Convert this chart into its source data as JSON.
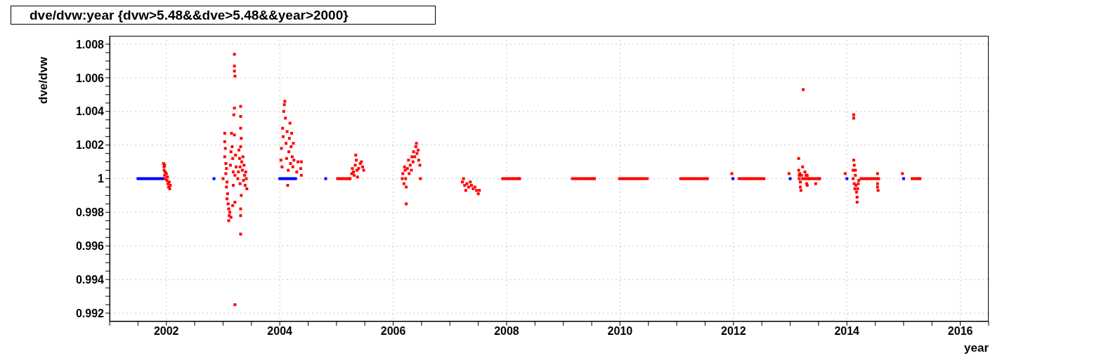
{
  "chart_data": {
    "type": "scatter",
    "title": "dve/dvw:year {dvw>5.48&&dve>5.48&&year>2000}",
    "xlabel": "year",
    "ylabel": "dve/dvw",
    "marker": "square",
    "grid": true,
    "xlim": [
      2001,
      2016.5
    ],
    "xticks": [
      {
        "value": 2001,
        "label": null
      },
      {
        "value": 2001.5,
        "label": null
      },
      2002,
      {
        "value": 2002.5,
        "label": null
      },
      {
        "value": 2003,
        "label": null
      },
      {
        "value": 2003.5,
        "label": null
      },
      2004,
      {
        "value": 2004.5,
        "label": null
      },
      {
        "value": 2005,
        "label": null
      },
      {
        "value": 2005.5,
        "label": null
      },
      2006,
      {
        "value": 2006.5,
        "label": null
      },
      {
        "value": 2007,
        "label": null
      },
      {
        "value": 2007.5,
        "label": null
      },
      2008,
      {
        "value": 2008.5,
        "label": null
      },
      {
        "value": 2009,
        "label": null
      },
      {
        "value": 2009.5,
        "label": null
      },
      2010,
      {
        "value": 2010.5,
        "label": null
      },
      {
        "value": 2011,
        "label": null
      },
      {
        "value": 2011.5,
        "label": null
      },
      2012,
      {
        "value": 2012.5,
        "label": null
      },
      {
        "value": 2013,
        "label": null
      },
      {
        "value": 2013.5,
        "label": null
      },
      2014,
      {
        "value": 2014.5,
        "label": null
      },
      {
        "value": 2015,
        "label": null
      },
      {
        "value": 2015.5,
        "label": null
      },
      2016,
      {
        "value": 2016.5,
        "label": null
      }
    ],
    "ylim": [
      0.9915,
      1.0085
    ],
    "yticks": [
      0.992,
      {
        "value": 0.9925,
        "label": null
      },
      {
        "value": 0.993,
        "label": null
      },
      {
        "value": 0.9935,
        "label": null
      },
      0.994,
      {
        "value": 0.9945,
        "label": null
      },
      {
        "value": 0.995,
        "label": null
      },
      {
        "value": 0.9955,
        "label": null
      },
      0.996,
      {
        "value": 0.9965,
        "label": null
      },
      {
        "value": 0.997,
        "label": null
      },
      {
        "value": 0.9975,
        "label": null
      },
      0.998,
      {
        "value": 0.9985,
        "label": null
      },
      {
        "value": 0.999,
        "label": null
      },
      {
        "value": 0.9995,
        "label": null
      },
      1,
      {
        "value": 1.0005,
        "label": null
      },
      {
        "value": 1.001,
        "label": null
      },
      {
        "value": 1.0015,
        "label": null
      },
      1.002,
      {
        "value": 1.0025,
        "label": null
      },
      {
        "value": 1.003,
        "label": null
      },
      {
        "value": 1.0035,
        "label": null
      },
      1.004,
      {
        "value": 1.0045,
        "label": null
      },
      {
        "value": 1.005,
        "label": null
      },
      {
        "value": 1.0055,
        "label": null
      },
      1.006,
      {
        "value": 1.0065,
        "label": null
      },
      {
        "value": 1.007,
        "label": null
      },
      {
        "value": 1.0075,
        "label": null
      },
      1.008
    ],
    "series": [
      {
        "color": "#0000ff",
        "x": [
          2001.5,
          2001.54,
          2001.58,
          2001.62,
          2001.66,
          2001.7,
          2001.74,
          2001.78,
          2001.82,
          2001.86,
          2001.9,
          2001.94,
          2002.84,
          2004.0,
          2004.04,
          2004.08,
          2004.12,
          2004.16,
          2004.2,
          2004.24,
          2004.28,
          2004.81,
          2011.99,
          2013.0,
          2014.0,
          2015.0
        ],
        "values": [
          1,
          1,
          1,
          1,
          1,
          1,
          1,
          1,
          1,
          1,
          1,
          1,
          1,
          1,
          1,
          1,
          1,
          1,
          1,
          1,
          1,
          1,
          1,
          1,
          1,
          1
        ]
      },
      {
        "color": "#ff0000",
        "x": [
          2001.95,
          2001.96,
          2001.97,
          2001.96,
          2001.98,
          2001.97,
          2001.98,
          2002.0,
          2002.01,
          2002.02,
          2002.03,
          2002.04,
          2002.05,
          2002.06,
          2002.07,
          2003.0,
          2003.03,
          2003.03,
          2003.04,
          2003.03,
          2003.05,
          2003.06,
          2003.05,
          2003.07,
          2003.06,
          2003.08,
          2003.07,
          2003.09,
          2003.1,
          2003.11,
          2003.1,
          2003.12,
          2003.13,
          2003.14,
          2003.15,
          2003.16,
          2003.17,
          2003.18,
          2003.18,
          2003.17,
          2003.19,
          2003.2,
          2003.2,
          2003.2,
          2003.2,
          2003.21,
          2003.2,
          2003.21,
          2003.21,
          2003.21,
          2003.22,
          2003.23,
          2003.14,
          2003.26,
          2003.27,
          2003.28,
          2003.29,
          2003.3,
          2003.3,
          2003.31,
          2003.31,
          2003.31,
          2003.32,
          2003.31,
          2003.32,
          2003.31,
          2003.31,
          2003.31,
          2003.33,
          2003.34,
          2003.35,
          2003.36,
          2003.37,
          2003.38,
          2003.39,
          2003.4,
          2003.41,
          2003.42,
          2004.02,
          2004.03,
          2004.04,
          2004.05,
          2004.06,
          2004.07,
          2004.08,
          2004.09,
          2004.1,
          2004.11,
          2004.12,
          2004.13,
          2004.14,
          2004.15,
          2004.16,
          2004.17,
          2004.18,
          2004.19,
          2004.2,
          2004.21,
          2004.22,
          2004.23,
          2004.24,
          2004.25,
          2004.3,
          2004.32,
          2004.37,
          2004.38,
          2004.38,
          2005.02,
          2005.06,
          2005.1,
          2005.14,
          2005.18,
          2005.22,
          2005.24,
          2005.27,
          2005.28,
          2005.3,
          2005.31,
          2005.33,
          2005.34,
          2005.35,
          2005.36,
          2005.37,
          2005.39,
          2005.42,
          2005.44,
          2005.46,
          2005.48,
          2006.16,
          2006.17,
          2006.19,
          2006.2,
          2006.21,
          2006.22,
          2006.23,
          2006.23,
          2006.25,
          2006.27,
          2006.28,
          2006.3,
          2006.32,
          2006.33,
          2006.35,
          2006.36,
          2006.38,
          2006.4,
          2006.41,
          2006.42,
          2006.44,
          2006.45,
          2006.47,
          2006.48,
          2007.22,
          2007.24,
          2007.26,
          2007.28,
          2007.3,
          2007.33,
          2007.36,
          2007.38,
          2007.41,
          2007.44,
          2007.47,
          2007.5,
          2007.52,
          2007.93,
          2007.97,
          2008.01,
          2008.05,
          2008.09,
          2008.13,
          2008.17,
          2008.21,
          2008.23,
          2009.16,
          2009.2,
          2009.24,
          2009.28,
          2009.32,
          2009.36,
          2009.4,
          2009.44,
          2009.48,
          2009.52,
          2009.55,
          2009.99,
          2010.03,
          2010.07,
          2010.11,
          2010.15,
          2010.19,
          2010.23,
          2010.27,
          2010.31,
          2010.35,
          2010.39,
          2010.43,
          2010.48,
          2011.07,
          2011.11,
          2011.15,
          2011.19,
          2011.23,
          2011.27,
          2011.31,
          2011.35,
          2011.39,
          2011.43,
          2011.47,
          2011.51,
          2011.54,
          2011.97,
          2012.1,
          2012.14,
          2012.18,
          2012.22,
          2012.26,
          2012.3,
          2012.34,
          2012.38,
          2012.42,
          2012.46,
          2012.5,
          2012.54,
          2012.98,
          2013.15,
          2013.15,
          2013.16,
          2013.16,
          2013.17,
          2013.18,
          2013.18,
          2013.19,
          2013.2,
          2013.23,
          2013.22,
          2013.26,
          2013.28,
          2013.29,
          2013.3,
          2013.3,
          2013.33,
          2013.45,
          2013.22,
          2013.26,
          2013.3,
          2013.34,
          2013.38,
          2013.42,
          2013.46,
          2013.5,
          2013.52,
          2013.97,
          2014.11,
          2014.11,
          2014.12,
          2014.12,
          2014.12,
          2014.13,
          2014.13,
          2014.14,
          2014.15,
          2014.15,
          2014.16,
          2014.17,
          2014.18,
          2014.18,
          2014.19,
          2014.2,
          2014.21,
          2014.25,
          2014.29,
          2014.33,
          2014.37,
          2014.41,
          2014.45,
          2014.49,
          2014.53,
          2014.56,
          2014.54,
          2014.54,
          2014.54,
          2014.55,
          2014.98,
          2015.15,
          2015.19,
          2015.23,
          2015.27,
          2015.29
        ],
        "values": [
          1.0009,
          1.0007,
          1.0008,
          1.0005,
          1.0004,
          1.0002,
          1.0,
          1.0003,
          0.9999,
          1.0001,
          0.9997,
          0.9995,
          0.9998,
          0.9994,
          0.9996,
          1.0,
          1.0027,
          1.0022,
          1.0018,
          1.0013,
          1.0009,
          1.0006,
          1.0003,
          0.9998,
          0.9995,
          0.9991,
          0.9988,
          0.9985,
          0.9982,
          0.9978,
          0.9975,
          0.998,
          1.0008,
          1.0016,
          1.0027,
          1.0019,
          1.0012,
          1.0004,
          0.9996,
          0.9984,
          1.0038,
          1.0042,
          1.0074,
          1.0067,
          1.0064,
          1.0061,
          1.0026,
          1.0002,
          0.9986,
          0.9925,
          1.0014,
          1.0007,
          0.9977,
          1.0,
          1.0004,
          1.0017,
          1.0012,
          1.0007,
          0.9997,
          1.0043,
          1.0037,
          1.003,
          1.0024,
          1.0019,
          0.999,
          0.9982,
          0.9978,
          0.9967,
          1.001,
          1.0005,
          1.0013,
          0.9999,
          1.0008,
          1.0002,
          0.9996,
          1.0004,
          1.0,
          0.9994,
          1.0011,
          1.0018,
          1.0007,
          1.003,
          1.0025,
          1.004,
          1.0044,
          1.0046,
          1.0036,
          1.0021,
          1.0012,
          1.0028,
          0.9996,
          1.0005,
          1.0016,
          1.0024,
          1.0033,
          1.0009,
          1.0019,
          1.0027,
          1.0013,
          1.0007,
          1.0021,
          1.0011,
          1.0004,
          1.001,
          1.0006,
          1.001,
          1.0002,
          1,
          1,
          1,
          1,
          1,
          1,
          1,
          1.0003,
          1.0006,
          1.0004,
          1.0002,
          1.0008,
          1.0014,
          1.0011,
          1.0005,
          1.0001,
          1.0006,
          1.0009,
          1.001,
          1.0007,
          1.0005,
          1.0,
          1.0003,
          0.9997,
          1.0007,
          1.0005,
          1.0,
          0.9985,
          0.9995,
          1.0006,
          1.0011,
          1.0003,
          1.0008,
          1.0005,
          1.0013,
          1.001,
          1.0016,
          1.0013,
          1.0019,
          1.0021,
          1.0015,
          1.0017,
          1.0011,
          1.0008,
          1.0,
          0.9998,
          1.0,
          0.9996,
          0.9993,
          0.9997,
          0.9995,
          0.9998,
          0.9996,
          0.9994,
          0.9995,
          0.9993,
          0.9991,
          0.9993,
          1,
          1,
          1,
          1,
          1,
          1,
          1,
          1,
          1,
          1,
          1,
          1,
          1,
          1,
          1,
          1,
          1,
          1,
          1,
          1,
          1,
          1,
          1,
          1,
          1,
          1,
          1,
          1,
          1,
          1,
          1,
          1,
          1,
          1,
          1,
          1,
          1,
          1,
          1,
          1,
          1,
          1,
          1,
          1,
          1,
          1,
          1.0003,
          1,
          1,
          1,
          1,
          1,
          1,
          1,
          1,
          1,
          1,
          1,
          1,
          1.0003,
          1.0012,
          1.0005,
          1.0002,
          1.0,
          1.0003,
          0.9998,
          0.9995,
          0.9993,
          1.0002,
          1.0053,
          1.0007,
          1.0004,
          1.0002,
          0.9997,
          1.0002,
          0.9996,
          1.0,
          0.9997,
          1,
          1,
          1,
          1,
          1,
          1,
          1,
          1,
          1,
          1.0003,
          1.0,
          1.0005,
          1.0038,
          1.0036,
          1.0011,
          1.0008,
          0.9997,
          0.9994,
          1.0005,
          1.0002,
          0.9996,
          0.9992,
          0.9989,
          0.9986,
          0.9994,
          0.9997,
          0.9999,
          1,
          1,
          1,
          1,
          1,
          1,
          1,
          1,
          1,
          1.0003,
          0.9997,
          0.9995,
          0.9993,
          1.0003,
          1,
          1,
          1,
          1,
          1
        ]
      }
    ]
  }
}
